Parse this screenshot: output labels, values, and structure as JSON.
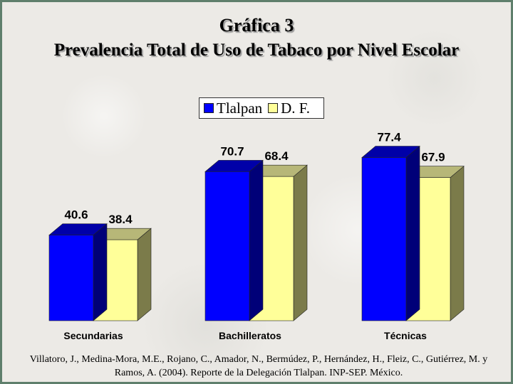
{
  "title_line1": "Gráfica 3",
  "title_line2": "Prevalencia Total de Uso de Tabaco por Nivel Escolar",
  "source": "Villatoro, J., Medina-Mora, M.E., Rojano, C., Amador, N., Bermúdez, P., Hernández, H., Fleiz, C., Gutiérrez, M. y Ramos, A. (2004). Reporte de la Delegación Tlalpan. INP-SEP. México.",
  "colors": {
    "tlalpan_front": "#0000ff",
    "tlalpan_top": "#0000a8",
    "tlalpan_side": "#000078",
    "df_front": "#ffff99",
    "df_top": "#b7b778",
    "df_side": "#7b7b4a"
  },
  "chart_data": {
    "type": "bar",
    "title": "Gráfica 3 Prevalencia Total de Uso de Tabaco por Nivel Escolar",
    "categories": [
      "Secundarias",
      "Bachilleratos",
      "Técnicas"
    ],
    "series": [
      {
        "name": "Tlalpan",
        "values": [
          40.6,
          70.7,
          77.4
        ],
        "labels": [
          "40.6",
          "70.7",
          "77.4"
        ]
      },
      {
        "name": "D. F.",
        "values": [
          38.4,
          68.4,
          67.9
        ],
        "labels": [
          "38.4",
          "68.4",
          "67.9"
        ]
      }
    ],
    "legend": "top-center",
    "grid": false,
    "ylim": [
      0,
      100
    ]
  }
}
